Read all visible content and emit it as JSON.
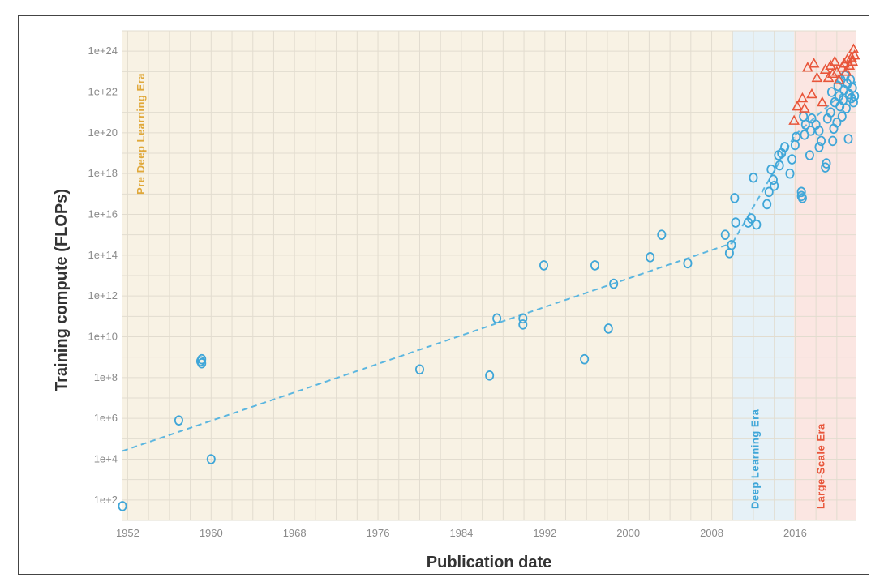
{
  "chart_data": {
    "type": "scatter",
    "title": "",
    "xlabel": "Publication date",
    "ylabel": "Training compute (FLOPs)",
    "y_scale": "log",
    "xlim": [
      1951.5,
      2021.8
    ],
    "ylim_exp": [
      1,
      25
    ],
    "x_ticks": [
      {
        "value": 1952,
        "label": "1952"
      },
      {
        "value": 1960,
        "label": "1960"
      },
      {
        "value": 1968,
        "label": "1968"
      },
      {
        "value": 1976,
        "label": "1976"
      },
      {
        "value": 1984,
        "label": "1984"
      },
      {
        "value": 1992,
        "label": "1992"
      },
      {
        "value": 2000,
        "label": "2000"
      },
      {
        "value": 2008,
        "label": "2008"
      },
      {
        "value": 2016,
        "label": "2016"
      }
    ],
    "y_ticks": [
      {
        "exp": 2,
        "label": "1e+2"
      },
      {
        "exp": 4,
        "label": "1e+4"
      },
      {
        "exp": 6,
        "label": "1e+6"
      },
      {
        "exp": 8,
        "label": "1e+8"
      },
      {
        "exp": 10,
        "label": "1e+10"
      },
      {
        "exp": 12,
        "label": "1e+12"
      },
      {
        "exp": 14,
        "label": "1e+14"
      },
      {
        "exp": 16,
        "label": "1e+16"
      },
      {
        "exp": 18,
        "label": "1e+18"
      },
      {
        "exp": 20,
        "label": "1e+20"
      },
      {
        "exp": 22,
        "label": "1e+22"
      },
      {
        "exp": 24,
        "label": "1e+24"
      }
    ],
    "grid": true,
    "eras": [
      {
        "name": "Pre Deep Learning Era",
        "x0": 1951.5,
        "x1": 2009.9,
        "fill": "#f8f2e4",
        "color": "#e0a83a"
      },
      {
        "name": "Deep Learning Era",
        "x0": 2009.9,
        "x1": 2015.9,
        "fill": "#e6f1f7",
        "color": "#3fa6d8"
      },
      {
        "name": "Large-Scale Era",
        "x0": 2015.9,
        "x1": 2021.8,
        "fill": "#fbe6e2",
        "color": "#e8553a"
      }
    ],
    "trend_lines": [
      {
        "name": "pre-dl-trend",
        "color": "#5bb6e0",
        "points": [
          [
            1951.5,
            4.4
          ],
          [
            2010.0,
            14.6
          ]
        ]
      },
      {
        "name": "dl-trend",
        "color": "#5bb6e0",
        "points": [
          [
            2010.0,
            14.6
          ],
          [
            2016.0,
            19.9
          ]
        ]
      },
      {
        "name": "ls-trend",
        "color": "#5bb6e0",
        "points": [
          [
            2016.0,
            19.9
          ],
          [
            2021.8,
            22.5
          ]
        ]
      }
    ],
    "series": [
      {
        "marker": "circle",
        "color": "#3fa6d8",
        "points": [
          [
            1951.5,
            1.7
          ],
          [
            1956.9,
            5.9
          ],
          [
            1959.0,
            8.8
          ],
          [
            1959.1,
            8.7
          ],
          [
            1959.1,
            8.9
          ],
          [
            1960.0,
            4.0
          ],
          [
            1980.0,
            8.4
          ],
          [
            1986.7,
            8.1
          ],
          [
            1987.4,
            10.9
          ],
          [
            1989.9,
            10.6
          ],
          [
            1989.9,
            10.9
          ],
          [
            1991.9,
            13.5
          ],
          [
            1995.8,
            8.9
          ],
          [
            1996.8,
            13.5
          ],
          [
            1998.1,
            10.4
          ],
          [
            1998.6,
            12.6
          ],
          [
            2002.1,
            13.9
          ],
          [
            2003.2,
            15.0
          ],
          [
            2005.7,
            13.6
          ],
          [
            2009.3,
            15.0
          ],
          [
            2009.7,
            14.1
          ],
          [
            2009.9,
            14.5
          ],
          [
            2010.2,
            16.8
          ],
          [
            2010.3,
            15.6
          ],
          [
            2011.5,
            15.6
          ],
          [
            2011.8,
            15.8
          ],
          [
            2012.3,
            15.5
          ],
          [
            2012.0,
            17.8
          ],
          [
            2013.3,
            16.5
          ],
          [
            2013.5,
            17.1
          ],
          [
            2013.7,
            18.2
          ],
          [
            2013.9,
            17.7
          ],
          [
            2014.0,
            17.4
          ],
          [
            2014.5,
            18.4
          ],
          [
            2014.7,
            19.0
          ],
          [
            2014.4,
            18.9
          ],
          [
            2015.0,
            19.3
          ],
          [
            2015.5,
            18.0
          ],
          [
            2015.7,
            18.7
          ],
          [
            2016.0,
            19.4
          ],
          [
            2016.1,
            19.8
          ],
          [
            2016.6,
            16.9
          ],
          [
            2016.6,
            17.1
          ],
          [
            2016.7,
            16.8
          ],
          [
            2016.8,
            20.8
          ],
          [
            2016.9,
            19.9
          ],
          [
            2017.0,
            20.4
          ],
          [
            2017.4,
            18.9
          ],
          [
            2017.5,
            20.1
          ],
          [
            2017.6,
            20.7
          ],
          [
            2018.0,
            20.4
          ],
          [
            2018.3,
            20.1
          ],
          [
            2018.3,
            19.3
          ],
          [
            2018.5,
            19.6
          ],
          [
            2018.9,
            18.3
          ],
          [
            2019.0,
            18.5
          ],
          [
            2019.1,
            20.7
          ],
          [
            2019.4,
            21.0
          ],
          [
            2019.5,
            22.0
          ],
          [
            2019.6,
            19.6
          ],
          [
            2019.7,
            20.2
          ],
          [
            2019.8,
            21.5
          ],
          [
            2020.0,
            20.5
          ],
          [
            2020.1,
            22.3
          ],
          [
            2020.2,
            21.8
          ],
          [
            2020.3,
            21.3
          ],
          [
            2020.4,
            22.6
          ],
          [
            2020.5,
            20.8
          ],
          [
            2020.6,
            21.6
          ],
          [
            2020.7,
            22.1
          ],
          [
            2020.8,
            22.8
          ],
          [
            2020.9,
            21.2
          ],
          [
            2021.0,
            22.4
          ],
          [
            2021.1,
            19.7
          ],
          [
            2021.2,
            21.9
          ],
          [
            2021.3,
            22.6
          ],
          [
            2021.4,
            21.7
          ],
          [
            2021.5,
            22.2
          ],
          [
            2021.6,
            21.5
          ],
          [
            2021.7,
            21.8
          ]
        ]
      },
      {
        "marker": "triangle",
        "color": "#e8553a",
        "points": [
          [
            2015.9,
            20.6
          ],
          [
            2016.2,
            21.3
          ],
          [
            2016.7,
            21.7
          ],
          [
            2016.9,
            21.2
          ],
          [
            2017.2,
            23.2
          ],
          [
            2017.6,
            21.9
          ],
          [
            2017.8,
            23.4
          ],
          [
            2018.1,
            22.7
          ],
          [
            2018.6,
            21.5
          ],
          [
            2018.9,
            23.1
          ],
          [
            2019.2,
            22.7
          ],
          [
            2019.4,
            23.3
          ],
          [
            2019.6,
            22.9
          ],
          [
            2019.8,
            23.5
          ],
          [
            2020.0,
            23.0
          ],
          [
            2020.2,
            22.6
          ],
          [
            2020.5,
            23.2
          ],
          [
            2020.7,
            23.4
          ],
          [
            2020.9,
            23.0
          ],
          [
            2021.0,
            23.6
          ],
          [
            2021.2,
            23.3
          ],
          [
            2021.4,
            23.7
          ],
          [
            2021.5,
            23.5
          ],
          [
            2021.6,
            24.1
          ],
          [
            2021.7,
            23.8
          ]
        ]
      }
    ]
  }
}
